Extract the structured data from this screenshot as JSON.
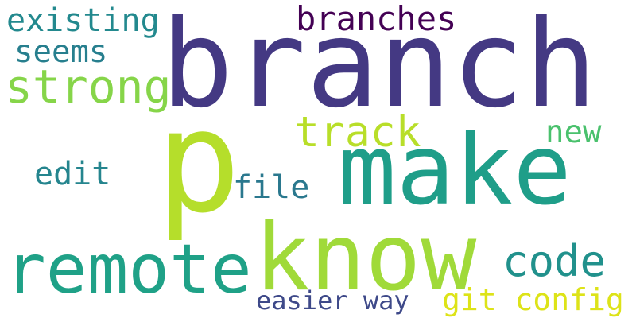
{
  "words": [
    {
      "id": "branch",
      "text": "branch",
      "color": "#443983"
    },
    {
      "id": "p",
      "text": "p",
      "color": "#b5de2b"
    },
    {
      "id": "make",
      "text": "make",
      "color": "#1f9e89"
    },
    {
      "id": "know",
      "text": "know",
      "color": "#a0da39"
    },
    {
      "id": "remote",
      "text": "remote",
      "color": "#1fa187"
    },
    {
      "id": "strong",
      "text": "strong",
      "color": "#86d549"
    },
    {
      "id": "existing",
      "text": "existing",
      "color": "#23898e"
    },
    {
      "id": "branches",
      "text": "branches",
      "color": "#440154"
    },
    {
      "id": "seems",
      "text": "seems",
      "color": "#277f8e"
    },
    {
      "id": "track",
      "text": "track",
      "color": "#b8de29"
    },
    {
      "id": "new",
      "text": "new",
      "color": "#4ac16d"
    },
    {
      "id": "edit",
      "text": "edit",
      "color": "#25858e"
    },
    {
      "id": "file",
      "text": "file",
      "color": "#2a788e"
    },
    {
      "id": "code",
      "text": "code",
      "color": "#21918c"
    },
    {
      "id": "easier-way",
      "text": "easier way",
      "color": "#3e4989"
    },
    {
      "id": "git-config",
      "text": "git config",
      "color": "#dde318"
    }
  ]
}
